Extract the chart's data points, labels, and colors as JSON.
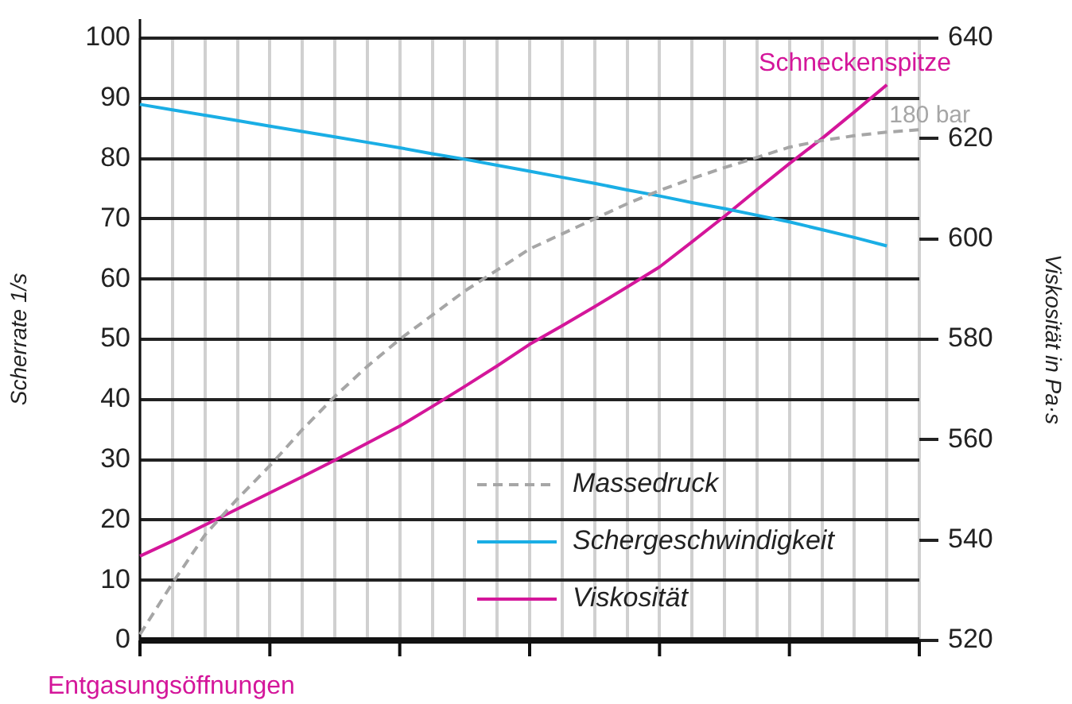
{
  "chart_data": {
    "type": "line",
    "ylabel": "Scherrate 1/s",
    "y2label": "Viskosität in Pa·s",
    "categories": [
      null,
      null,
      null,
      null,
      null,
      null,
      null,
      null,
      null,
      null,
      null,
      null,
      null,
      null,
      null,
      null,
      null,
      null,
      null,
      null,
      null,
      null,
      null,
      null,
      null
    ],
    "ylim": [
      0,
      100
    ],
    "yticks": [
      0,
      10,
      20,
      30,
      40,
      50,
      60,
      70,
      80,
      90,
      100
    ],
    "y2lim": [
      520,
      640
    ],
    "y2ticks": [
      520,
      540,
      560,
      580,
      600,
      620,
      640
    ],
    "grid": true,
    "legend": "bottom right",
    "marker": "none",
    "series": [
      {
        "name": "Massedruck",
        "color": "#a6a6a6",
        "line_style": "dashed",
        "values": [
          1,
          9.5,
          17.5,
          23.5,
          29,
          35,
          40.5,
          45.5,
          50,
          54,
          58,
          61.5,
          65,
          67.5,
          70,
          72.5,
          74.7,
          76.7,
          78.5,
          80.2,
          81.9,
          83,
          83.8,
          84.4,
          84.8
        ]
      },
      {
        "name": "Schergeschwindigkeit",
        "color": "#1aaee5",
        "line_style": "solid",
        "values": [
          89,
          88.1,
          87.2,
          86.3,
          85.4,
          84.5,
          83.6,
          82.7,
          81.8,
          80.8,
          79.9,
          78.9,
          77.9,
          76.9,
          75.9,
          74.8,
          73.8,
          72.7,
          71.7,
          70.6,
          69.5,
          68.2,
          66.9,
          65.5,
          null
        ]
      },
      {
        "name": "Viskosität",
        "color": "#d4169a",
        "line_style": "solid",
        "axis": "y2",
        "values": [
          536.8,
          539.8,
          543,
          546.2,
          549.4,
          552.6,
          555.9,
          559.3,
          562.7,
          566.6,
          570.6,
          574.7,
          579,
          582.7,
          586.5,
          590.4,
          594.4,
          599.4,
          604.5,
          609.8,
          615,
          620,
          625.3,
          630.7,
          null
        ]
      }
    ],
    "annotations": [
      "Entgasungsöffnungen",
      "Schneckenspitze",
      "180 bar"
    ]
  }
}
